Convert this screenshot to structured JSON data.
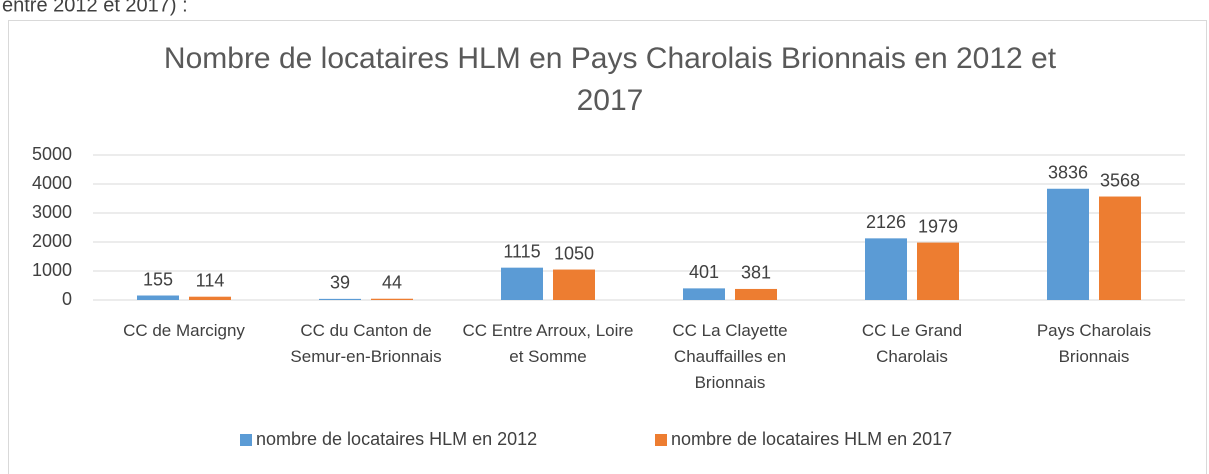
{
  "intro_text": "entre 2012 et 2017) :",
  "chart_data": {
    "type": "bar",
    "title": "Nombre de locataires HLM en Pays Charolais Brionnais en 2012 et 2017",
    "categories": [
      "CC de Marcigny",
      "CC du Canton de Semur-en-Brionnais",
      "CC Entre Arroux, Loire et Somme",
      "CC La Clayette Chauffailles en Brionnais",
      "CC Le Grand Charolais",
      "Pays Charolais Brionnais"
    ],
    "series": [
      {
        "name": "nombre de locataires HLM en 2012",
        "color": "#5b9bd5",
        "values": [
          155,
          39,
          1115,
          401,
          2126,
          3836
        ]
      },
      {
        "name": "nombre de locataires HLM en 2017",
        "color": "#ed7d31",
        "values": [
          114,
          44,
          1050,
          381,
          1979,
          3568
        ]
      }
    ],
    "ylim": [
      0,
      5000
    ],
    "yticks": [
      0,
      1000,
      2000,
      3000,
      4000,
      5000
    ],
    "grid": true,
    "legend": "bottom"
  }
}
